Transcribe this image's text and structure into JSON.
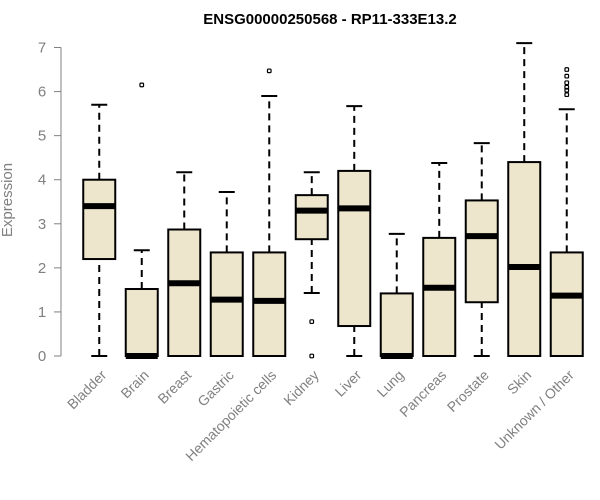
{
  "chart_data": {
    "type": "boxplot",
    "title": "ENSG00000250568 - RP11-333E13.2",
    "xlabel": "",
    "ylabel": "Expression",
    "ylim": [
      0,
      7
    ],
    "yticks": [
      0,
      1,
      2,
      3,
      4,
      5,
      6,
      7
    ],
    "colors": {
      "box_fill": "#ede6cc",
      "line": "#000000",
      "axis": "#808080"
    },
    "categories": [
      "Bladder",
      "Brain",
      "Breast",
      "Gastric",
      "Hematopoietic cells",
      "Kidney",
      "Liver",
      "Lung",
      "Pancreas",
      "Prostate",
      "Skin",
      "Unknown / Other"
    ],
    "boxes": [
      {
        "name": "Bladder",
        "min": 0,
        "q1": 2.2,
        "median": 3.4,
        "q3": 4.0,
        "max": 5.7,
        "outliers": []
      },
      {
        "name": "Brain",
        "min": 0,
        "q1": 0,
        "median": 0,
        "q3": 1.52,
        "max": 2.4,
        "outliers": [
          6.15
        ]
      },
      {
        "name": "Breast",
        "min": 0,
        "q1": 0,
        "median": 1.65,
        "q3": 2.87,
        "max": 4.17,
        "outliers": []
      },
      {
        "name": "Gastric",
        "min": 0,
        "q1": 0,
        "median": 1.28,
        "q3": 2.35,
        "max": 3.72,
        "outliers": []
      },
      {
        "name": "Hematopoietic cells",
        "min": 0,
        "q1": 0,
        "median": 1.25,
        "q3": 2.35,
        "max": 5.9,
        "outliers": [
          6.47
        ]
      },
      {
        "name": "Kidney",
        "min": 1.43,
        "q1": 2.65,
        "median": 3.3,
        "q3": 3.65,
        "max": 4.17,
        "outliers": [
          0.78,
          0
        ]
      },
      {
        "name": "Liver",
        "min": 0,
        "q1": 0.68,
        "median": 3.35,
        "q3": 4.2,
        "max": 5.67,
        "outliers": []
      },
      {
        "name": "Lung",
        "min": 0,
        "q1": 0,
        "median": 0,
        "q3": 1.42,
        "max": 2.77,
        "outliers": []
      },
      {
        "name": "Pancreas",
        "min": 0,
        "q1": 0,
        "median": 1.55,
        "q3": 2.68,
        "max": 4.38,
        "outliers": []
      },
      {
        "name": "Prostate",
        "min": 0,
        "q1": 1.22,
        "median": 2.72,
        "q3": 3.53,
        "max": 4.83,
        "outliers": []
      },
      {
        "name": "Skin",
        "min": 0,
        "q1": 0,
        "median": 2.02,
        "q3": 4.4,
        "max": 7.1,
        "outliers": []
      },
      {
        "name": "Unknown / Other",
        "min": 0,
        "q1": 0,
        "median": 1.37,
        "q3": 2.35,
        "max": 5.6,
        "outliers": [
          5.93,
          6.03,
          6.1,
          6.2,
          6.35,
          6.5
        ]
      }
    ]
  }
}
